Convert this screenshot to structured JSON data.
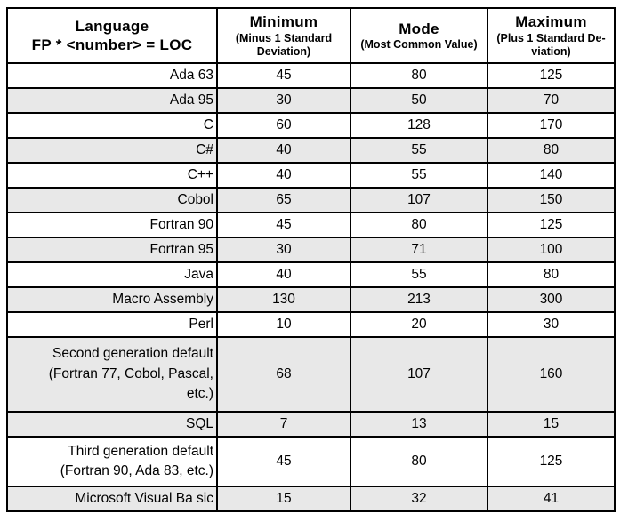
{
  "table": {
    "language_header": {
      "title": "Language",
      "formula": "FP * <number> = LOC"
    },
    "columns": [
      {
        "title": "Minimum",
        "subtitle": "(Minus 1 Standard\nDeviation)"
      },
      {
        "title": "Mode",
        "subtitle": "(Most Common Value)"
      },
      {
        "title": "Maximum",
        "subtitle": "(Plus 1 Standard De-\nviation)"
      }
    ],
    "rows": [
      {
        "language": "Ada 63",
        "minimum": "45",
        "mode": "80",
        "maximum": "125",
        "shaded": false,
        "lines": 1
      },
      {
        "language": "Ada 95",
        "minimum": "30",
        "mode": "50",
        "maximum": "70",
        "shaded": true,
        "lines": 1
      },
      {
        "language": "C",
        "minimum": "60",
        "mode": "128",
        "maximum": "170",
        "shaded": false,
        "lines": 1
      },
      {
        "language": "C#",
        "minimum": "40",
        "mode": "55",
        "maximum": "80",
        "shaded": true,
        "lines": 1
      },
      {
        "language": "C++",
        "minimum": "40",
        "mode": "55",
        "maximum": "140",
        "shaded": false,
        "lines": 1
      },
      {
        "language": "Cobol",
        "minimum": "65",
        "mode": "107",
        "maximum": "150",
        "shaded": true,
        "lines": 1
      },
      {
        "language": "Fortran 90",
        "minimum": "45",
        "mode": "80",
        "maximum": "125",
        "shaded": false,
        "lines": 1
      },
      {
        "language": "Fortran 95",
        "minimum": "30",
        "mode": "71",
        "maximum": "100",
        "shaded": true,
        "lines": 1
      },
      {
        "language": "Java",
        "minimum": "40",
        "mode": "55",
        "maximum": "80",
        "shaded": false,
        "lines": 1
      },
      {
        "language": "Macro Assembly",
        "minimum": "130",
        "mode": "213",
        "maximum": "300",
        "shaded": true,
        "lines": 1
      },
      {
        "language": "Perl",
        "minimum": "10",
        "mode": "20",
        "maximum": "30",
        "shaded": false,
        "lines": 1
      },
      {
        "language": "Second generation default\n(Fortran 77, Cobol, Pascal,\netc.)",
        "minimum": "68",
        "mode": "107",
        "maximum": "160",
        "shaded": true,
        "lines": 3
      },
      {
        "language": "SQL",
        "minimum": "7",
        "mode": "13",
        "maximum": "15",
        "shaded": true,
        "lines": 1
      },
      {
        "language": "Third generation default\n(Fortran 90, Ada 83, etc.)",
        "minimum": "45",
        "mode": "80",
        "maximum": "125",
        "shaded": false,
        "lines": 2
      },
      {
        "language": "Microsoft Visual Ba sic",
        "minimum": "15",
        "mode": "32",
        "maximum": "41",
        "shaded": true,
        "lines": 1
      }
    ],
    "colors": {
      "shaded_row": "#e8e8e8",
      "border": "#000000",
      "text": "#000000"
    }
  }
}
